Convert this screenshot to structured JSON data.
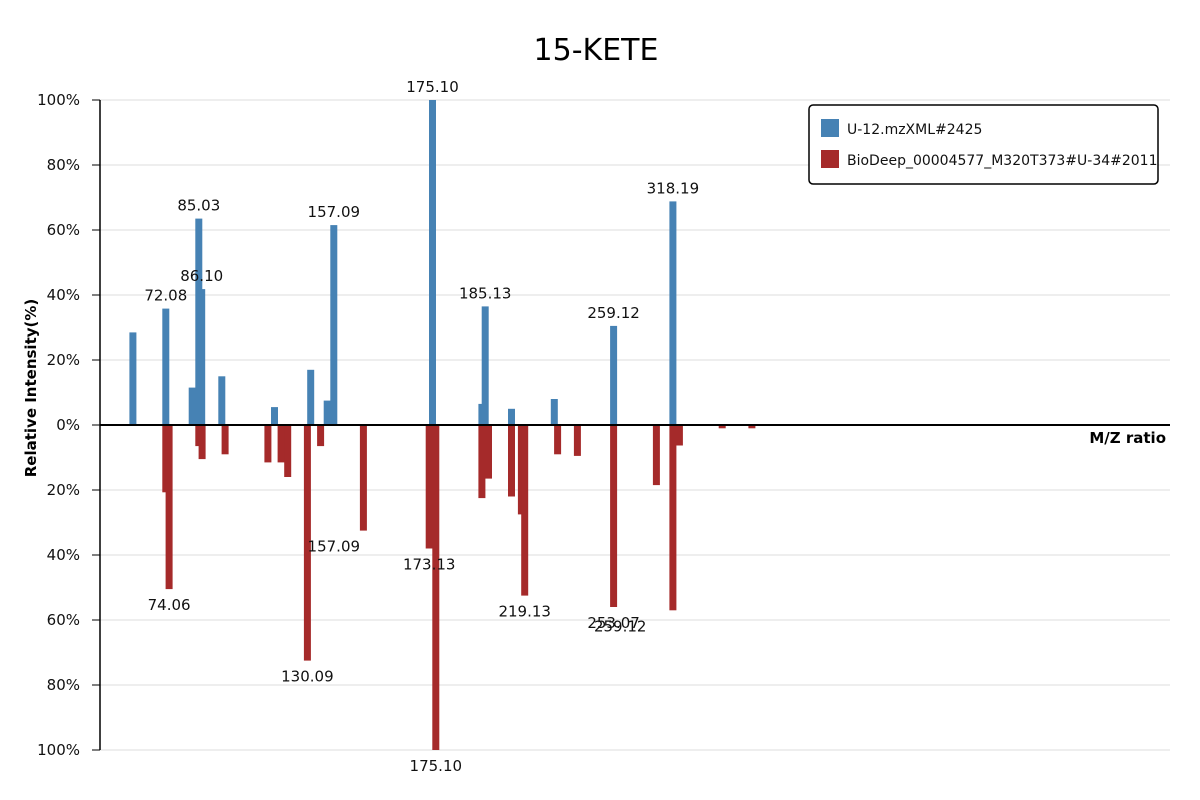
{
  "chart_data": {
    "type": "bar",
    "title": "15-KETE",
    "xlabel": "M/Z ratio",
    "ylabel": "Relative Intensity(%)",
    "ylim": [
      -100,
      100
    ],
    "y_ticks": [
      "100%",
      "80%",
      "60%",
      "40%",
      "20%",
      "0%",
      "20%",
      "40%",
      "60%",
      "80%",
      "100%"
    ],
    "legend_placement": "top-right",
    "grid": true,
    "colors": {
      "query": "#4682b4",
      "reference": "#a52a2a"
    },
    "x_domain": [
      45,
      370
    ],
    "series": [
      {
        "name": "U-12.mzXML#2425",
        "role": "query",
        "x": [
          55.0,
          65.0,
          73.0,
          75.0,
          75.9,
          82.0,
          98.0,
          109.0,
          114.0,
          116.0,
          146.0,
          161.0,
          162.0,
          170.0,
          183.0,
          201.0,
          219.0
        ],
        "values": [
          28.5,
          35.8,
          11.5,
          63.5,
          41.8,
          15.0,
          5.5,
          17.0,
          7.5,
          61.5,
          100.0,
          6.5,
          36.5,
          5.0,
          8.0,
          30.5,
          68.8
        ]
      },
      {
        "name": "BioDeep_00004577_M320T373#U-34#2011",
        "role": "reference",
        "x": [
          65.0,
          66.0,
          75.0,
          76.0,
          83.0,
          96.0,
          100.0,
          102.0,
          108.0,
          112.0,
          125.0,
          145.0,
          147.0,
          161.0,
          163.0,
          170.0,
          173.0,
          174.0,
          184.0,
          190.0,
          201.0,
          214.0,
          219.0,
          221.0,
          234.0,
          243.0
        ],
        "values": [
          -20.7,
          -50.5,
          -6.5,
          -10.5,
          -9.0,
          -11.5,
          -11.5,
          -16.0,
          -72.5,
          -6.5,
          -32.5,
          -38.0,
          -100.0,
          -22.5,
          -16.5,
          -22.0,
          -27.5,
          -52.5,
          -9.0,
          -9.5,
          -56.0,
          -18.5,
          -57.0,
          -6.3,
          -1,
          -1
        ]
      }
    ],
    "annotations": [
      {
        "text": "72.08",
        "x": 65.0,
        "y": 35.8
      },
      {
        "text": "85.03",
        "x": 75.0,
        "y": 63.5
      },
      {
        "text": "86.10",
        "x": 75.9,
        "y": 41.8
      },
      {
        "text": "157.09",
        "x": 116.0,
        "y": 61.5
      },
      {
        "text": "175.10",
        "x": 146.0,
        "y": 100.0
      },
      {
        "text": "185.13",
        "x": 162.0,
        "y": 36.5
      },
      {
        "text": "259.12",
        "x": 201.0,
        "y": 30.5
      },
      {
        "text": "318.19",
        "x": 219.0,
        "y": 68.8
      },
      {
        "text": "74.06",
        "x": 66.0,
        "y": -50.5
      },
      {
        "text": "130.09",
        "x": 108.0,
        "y": -72.5
      },
      {
        "text": "157.09",
        "x": 116.0,
        "y": -32.5
      },
      {
        "text": "173.13",
        "x": 145.0,
        "y": -38.0
      },
      {
        "text": "175.10",
        "x": 147.0,
        "y": -100.0
      },
      {
        "text": "219.13",
        "x": 174.0,
        "y": -52.5
      },
      {
        "text": "253.07",
        "x": 201.0,
        "y": -56.0
      },
      {
        "text": "259.12",
        "x": 203.0,
        "y": -57.0
      }
    ]
  }
}
